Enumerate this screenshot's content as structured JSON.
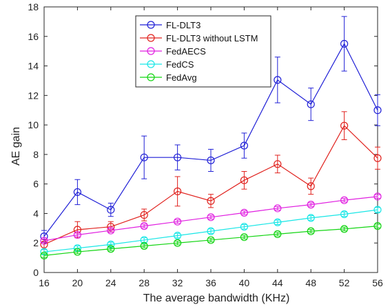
{
  "chart_data": {
    "type": "line",
    "title": "",
    "xlabel": "The average bandwidth (KHz)",
    "ylabel": "AE gain",
    "xlim": [
      16,
      56
    ],
    "ylim": [
      0,
      18
    ],
    "x": [
      16,
      20,
      24,
      28,
      32,
      36,
      40,
      44,
      48,
      52,
      56
    ],
    "xticks": [
      "16",
      "20",
      "24",
      "28",
      "32",
      "36",
      "40",
      "44",
      "48",
      "52",
      "56"
    ],
    "yticks": [
      "0",
      "2",
      "4",
      "6",
      "8",
      "10",
      "12",
      "14",
      "16",
      "18"
    ],
    "grid": false,
    "legend_position": "top-center",
    "series": [
      {
        "name": "FL-DLT3",
        "color": "#1f1fd6",
        "values": [
          2.45,
          5.45,
          4.25,
          7.8,
          7.8,
          7.6,
          8.6,
          13.05,
          11.4,
          15.5,
          11.0
        ],
        "errors": [
          0.4,
          0.85,
          0.45,
          1.45,
          0.85,
          0.75,
          0.85,
          1.55,
          1.1,
          1.85,
          1.05
        ]
      },
      {
        "name": "FL-DLT3  without LSTM",
        "color": "#e0201c",
        "values": [
          1.9,
          2.9,
          3.1,
          3.9,
          5.5,
          4.85,
          6.25,
          7.35,
          5.85,
          9.95,
          7.75
        ],
        "errors": [
          0.35,
          0.55,
          0.35,
          0.4,
          1.0,
          0.45,
          0.6,
          0.6,
          0.55,
          0.95,
          0.75
        ]
      },
      {
        "name": "FedAECS",
        "color": "#e01ee0",
        "values": [
          2.15,
          2.55,
          2.85,
          3.15,
          3.45,
          3.75,
          4.05,
          4.35,
          4.6,
          4.9,
          5.15
        ],
        "errors": [
          0.12,
          0.12,
          0.12,
          0.12,
          0.12,
          0.12,
          0.12,
          0.12,
          0.12,
          0.12,
          0.12
        ]
      },
      {
        "name": "FedCS",
        "color": "#17e6e6",
        "values": [
          1.4,
          1.65,
          1.9,
          2.2,
          2.5,
          2.8,
          3.1,
          3.4,
          3.7,
          3.95,
          4.25
        ],
        "errors": [
          0.15,
          0.15,
          0.15,
          0.15,
          0.15,
          0.15,
          0.15,
          0.15,
          0.15,
          0.15,
          0.15
        ]
      },
      {
        "name": "FedAvg",
        "color": "#12d512",
        "values": [
          1.15,
          1.4,
          1.6,
          1.8,
          2.0,
          2.2,
          2.4,
          2.6,
          2.8,
          2.95,
          3.15
        ],
        "errors": [
          0.12,
          0.12,
          0.12,
          0.12,
          0.12,
          0.12,
          0.12,
          0.12,
          0.12,
          0.12,
          0.12
        ]
      }
    ]
  }
}
